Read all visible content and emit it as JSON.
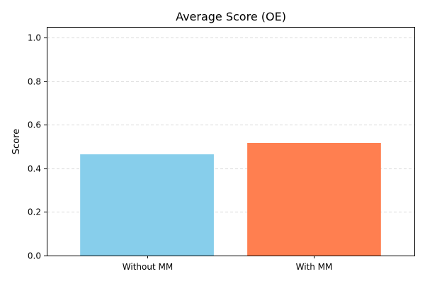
{
  "chart_data": {
    "type": "bar",
    "title": "Average Score (OE)",
    "xlabel": "",
    "ylabel": "Score",
    "categories": [
      "Without MM",
      "With MM"
    ],
    "values": [
      0.465,
      0.517
    ],
    "colors": [
      "#87CEEB",
      "#FF7F50"
    ],
    "ylim": [
      0,
      1.05
    ],
    "yticks": [
      0.0,
      0.2,
      0.4,
      0.6,
      0.8,
      1.0
    ],
    "ytick_labels": [
      "0.0",
      "0.2",
      "0.4",
      "0.6",
      "0.8",
      "1.0"
    ],
    "grid": "y-dashed",
    "grid_color": "#cccccc",
    "legend": "none"
  }
}
